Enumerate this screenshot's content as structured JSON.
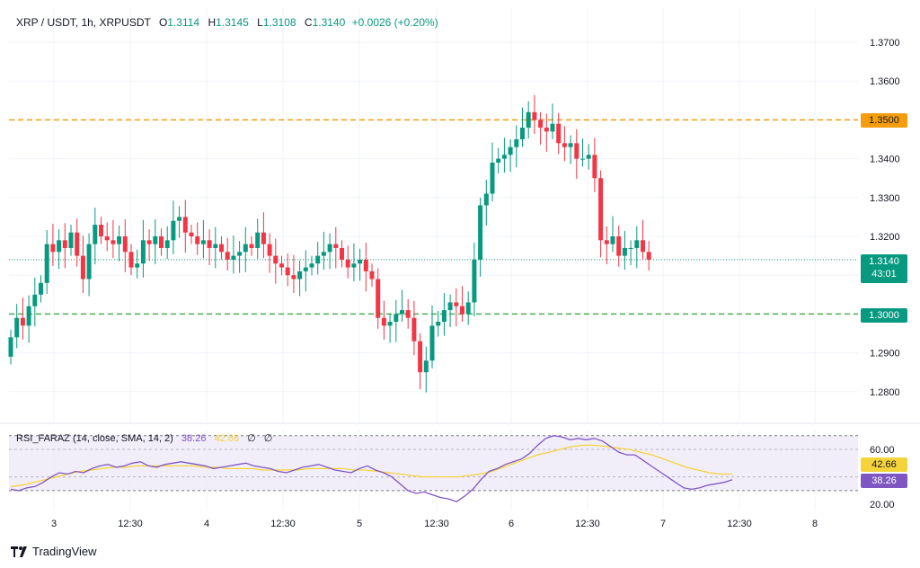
{
  "header": {
    "symbol": "XRP / USDT, 1h, XRPUSDT",
    "open_label": "O",
    "open": "1.3114",
    "high_label": "H",
    "high": "1.3145",
    "low_label": "L",
    "low": "1.3108",
    "close_label": "C",
    "close": "1.3140",
    "change": "+0.0026 (+0.20%)"
  },
  "rsi_legend": {
    "name": "RSI_FARAZ (14, close, SMA, 14, 2)",
    "rsi_value": "38.26",
    "sma_value": "42.66",
    "extra1": "∅",
    "extra2": "∅"
  },
  "badges": {
    "resistance": "1.3500",
    "price": "1.3140",
    "countdown": "43:01",
    "support": "1.3000",
    "rsi_sma": "42.66",
    "rsi": "38.26"
  },
  "branding": {
    "name": "TradingView"
  },
  "colors": {
    "up": "#089981",
    "down": "#f23645",
    "resistance": "#f59d0f",
    "support": "#4caf50",
    "rsi": "#7e57c2",
    "rsi_sma": "#f5d33a"
  },
  "chart_data": [
    {
      "type": "candlestick",
      "title": "XRP / USDT, 1h",
      "x_tick_labels": [
        "3",
        "12:30",
        "4",
        "12:30",
        "5",
        "12:30",
        "6",
        "12:30",
        "7",
        "12:30",
        "8"
      ],
      "y_tick_labels": [
        "1.3700",
        "1.3600",
        "1.3400",
        "1.3300",
        "1.3200",
        "1.2900",
        "1.2800"
      ],
      "ylim": [
        1.276,
        1.377
      ],
      "horizontal_lines": [
        {
          "label": "resistance",
          "value": 1.35,
          "style": "dashed"
        },
        {
          "label": "support",
          "value": 1.3,
          "style": "dashed"
        }
      ],
      "last_price": 1.314,
      "series": [
        {
          "name": "seg1",
          "start": 1.289,
          "points": [
            1.294,
            1.299,
            1.297,
            1.302,
            1.305,
            1.308,
            1.318,
            1.316,
            1.319,
            1.317,
            1.321,
            1.315,
            1.309,
            1.318,
            1.323,
            1.32,
            1.319,
            1.318,
            1.32,
            1.316,
            1.312,
            1.313,
            1.319,
            1.318,
            1.32,
            1.317,
            1.319,
            1.324,
            1.325,
            1.321,
            1.32,
            1.318,
            1.319,
            1.317,
            1.318,
            1.316,
            1.314,
            1.315,
            1.316,
            1.318,
            1.317,
            1.321,
            1.318,
            1.315,
            1.313,
            1.312,
            1.31,
            1.309,
            1.311,
            1.312,
            1.313,
            1.315,
            1.316,
            1.318,
            1.317,
            1.314,
            1.312,
            1.313,
            1.314,
            1.311,
            1.309
          ]
        },
        {
          "name": "seg2",
          "start": 1.309,
          "points": [
            1.299,
            1.297,
            1.298,
            1.3,
            1.301,
            1.299,
            1.293,
            1.285,
            1.288,
            1.297,
            1.298,
            1.301,
            1.303,
            1.302,
            1.3,
            1.303,
            1.314,
            1.328,
            1.331,
            1.339,
            1.34,
            1.341,
            1.343,
            1.345,
            1.348,
            1.352,
            1.35,
            1.348,
            1.347,
            1.349,
            1.344,
            1.343,
            1.344,
            1.34,
            1.34,
            1.341,
            1.335,
            1.319,
            1.318,
            1.32,
            1.315,
            1.317,
            1.317,
            1.319,
            1.316,
            1.314
          ]
        }
      ]
    },
    {
      "type": "line",
      "title": "RSI_FARAZ (14, close, SMA, 14, 2)",
      "ylim": [
        17,
        70
      ],
      "y_tick_labels": [
        "60.00",
        "20.00"
      ],
      "bands": [
        30,
        40,
        60,
        70
      ],
      "series": [
        {
          "name": "RSI",
          "values": [
            31,
            30,
            32,
            33,
            36,
            40,
            43,
            42,
            44,
            43,
            46,
            48,
            49,
            47,
            48,
            50,
            51,
            48,
            47,
            49,
            50,
            51,
            50,
            49,
            48,
            46,
            47,
            48,
            49,
            50,
            48,
            47,
            46,
            44,
            43,
            45,
            47,
            48,
            49,
            47,
            45,
            44,
            43,
            46,
            48,
            45,
            43,
            40,
            35,
            30,
            28,
            29,
            27,
            25,
            24,
            22,
            26,
            31,
            38,
            44,
            46,
            49,
            51,
            53,
            57,
            63,
            68,
            70,
            69,
            67,
            68,
            67,
            68,
            66,
            62,
            58,
            56,
            56,
            52,
            48,
            44,
            40,
            36,
            32,
            31,
            32,
            34,
            35,
            36,
            38
          ]
        },
        {
          "name": "RSI SMA",
          "values": [
            33,
            34,
            36,
            38,
            40,
            42,
            44,
            45,
            46,
            47,
            47,
            48,
            48,
            48,
            48,
            48,
            48,
            47,
            47,
            46,
            46,
            46,
            45,
            45,
            45,
            45,
            46,
            46,
            46,
            46,
            45,
            45,
            44,
            43,
            42,
            41,
            40,
            40,
            40,
            40,
            41,
            42,
            44,
            47,
            50,
            53,
            56,
            58,
            60,
            62,
            63,
            63,
            62,
            61,
            60,
            58,
            56,
            53,
            50,
            47,
            45,
            43,
            42,
            42
          ]
        }
      ]
    }
  ]
}
